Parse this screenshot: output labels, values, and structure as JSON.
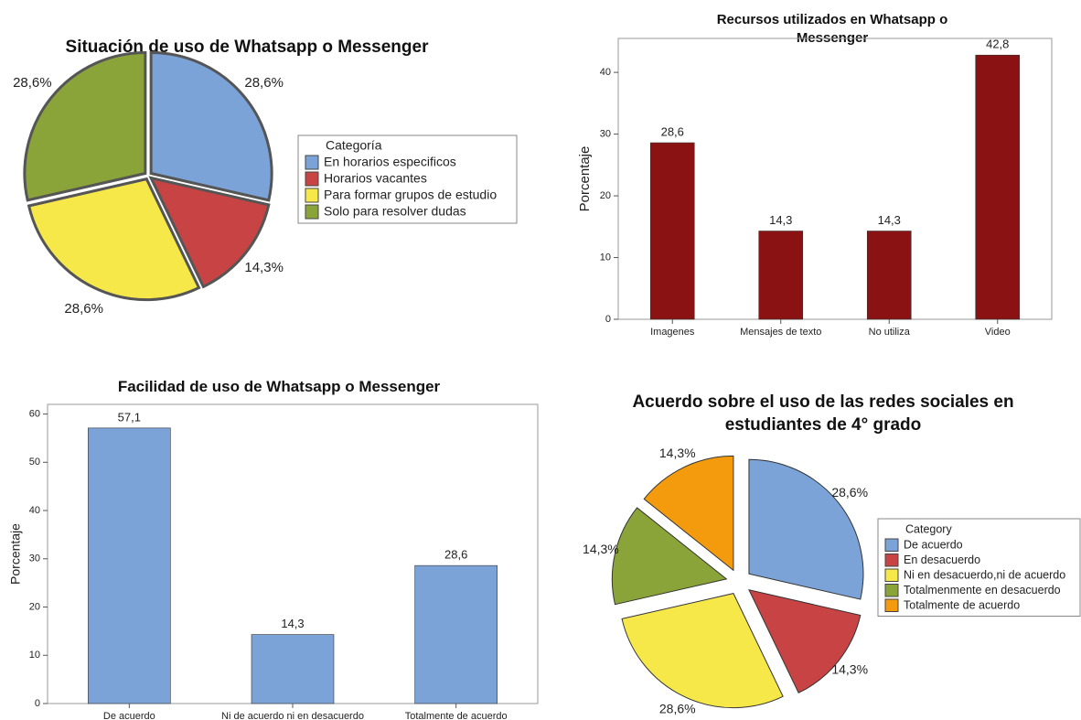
{
  "chart_data": [
    {
      "type": "pie",
      "title": "Situación de uso de Whatsapp o Messenger",
      "legend_title": "Categoría",
      "categories": [
        "En  horarios especificos",
        "Horarios vacantes",
        "Para formar grupos de estudio",
        "Solo para resolver dudas"
      ],
      "values": [
        28.6,
        14.3,
        28.6,
        28.6
      ],
      "value_labels": [
        "28,6%",
        "14,3%",
        "28,6%",
        "28,6%"
      ],
      "colors": [
        "#7ba3d8",
        "#c84444",
        "#f7e84a",
        "#8ba43a"
      ],
      "legend": "right"
    },
    {
      "type": "bar",
      "title": "Recursos utilizados en Whatsapp o Messenger",
      "ylabel": "Porcentaje",
      "categories": [
        "Imagenes",
        "Mensajes de texto",
        "No utiliza",
        "Video"
      ],
      "values": [
        28.6,
        14.3,
        14.3,
        42.8
      ],
      "value_labels": [
        "28,6",
        "14,3",
        "14,3",
        "42,8"
      ],
      "color": "#8b1212",
      "ylim": [
        0,
        45.5
      ],
      "yticks": [
        0,
        10,
        20,
        30,
        40
      ],
      "grid": false
    },
    {
      "type": "bar",
      "title": "Facilidad de uso de Whatsapp o Messenger",
      "ylabel": "Porcentaje",
      "categories": [
        "De acuerdo",
        "Ni de acuerdo ni en desacuerdo",
        "Totalmente de acuerdo"
      ],
      "values": [
        57.1,
        14.3,
        28.6
      ],
      "value_labels": [
        "57,1",
        "14,3",
        "28,6"
      ],
      "color": "#7ba3d8",
      "ylim": [
        0,
        62
      ],
      "yticks": [
        0,
        10,
        20,
        30,
        40,
        50,
        60
      ],
      "grid": false
    },
    {
      "type": "pie",
      "title": "Acuerdo sobre el uso de las redes sociales en estudiantes de 4° grado",
      "legend_title": "Category",
      "categories": [
        "De acuerdo",
        "En desacuerdo",
        "Ni en desacuerdo,ni de acuerdo",
        "Totalmenmente en desacuerdo",
        "Totalmente de acuerdo"
      ],
      "values": [
        28.6,
        14.3,
        28.6,
        14.3,
        14.3
      ],
      "value_labels": [
        "28,6%",
        "14,3%",
        "28,6%",
        "14,3%",
        "14,3%"
      ],
      "colors": [
        "#7ba3d8",
        "#c84444",
        "#f7e84a",
        "#8ba43a",
        "#f39b0d"
      ],
      "legend": "right"
    }
  ]
}
